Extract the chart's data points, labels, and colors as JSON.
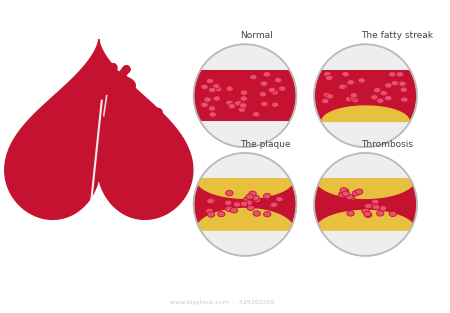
{
  "bg_color": "#ffffff",
  "heart_color": "#c41230",
  "vessel_wall_color": "#eeeeee",
  "vessel_dark_color": "#7a0010",
  "blood_color": "#c41230",
  "rbc_face_color": "#e85070",
  "rbc_edge_color": "#c41230",
  "plaque_color": "#e8c040",
  "plaque_edge_color": "#c8a010",
  "circle_bg": "#d8d8d8",
  "circle_edge": "#bbbbbb",
  "labels": [
    "Normal",
    "The fatty streak",
    "The plaque",
    "Thrombosis"
  ],
  "label_color": "#444444",
  "label_fontsize": 6.5,
  "watermark_color": "#cccccc",
  "watermark_text": "www.bigstock.com  ·  425262209"
}
